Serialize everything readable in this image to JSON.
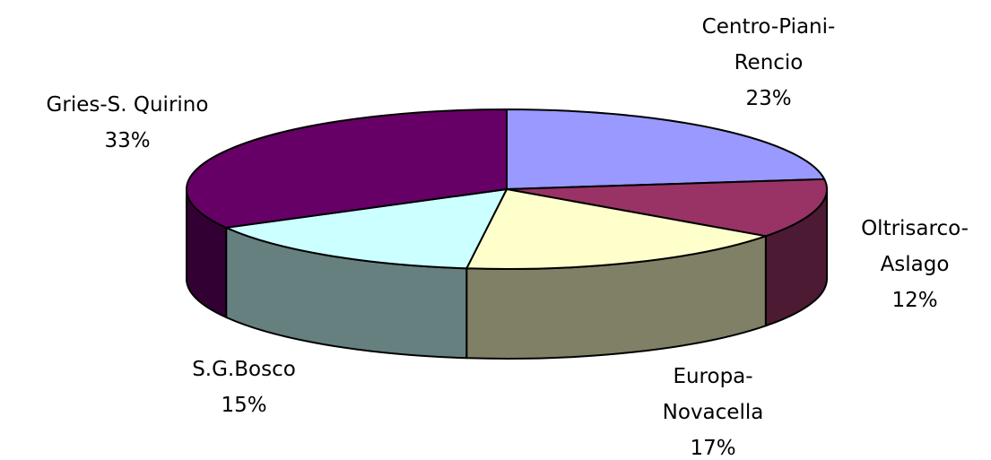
{
  "chart_data": {
    "type": "pie3d",
    "categories": [
      "Centro-Piani-Rencio",
      "Oltrisarco-Aslago",
      "Europa-Novacella",
      "S.G.Bosco",
      "Gries-S. Quirino"
    ],
    "values": [
      23,
      12,
      17,
      15,
      33
    ],
    "value_labels": [
      "23%",
      "12%",
      "17%",
      "15%",
      "33%"
    ],
    "colors": [
      "#9999ff",
      "#993366",
      "#ffffcc",
      "#ccffff",
      "#660066"
    ]
  }
}
